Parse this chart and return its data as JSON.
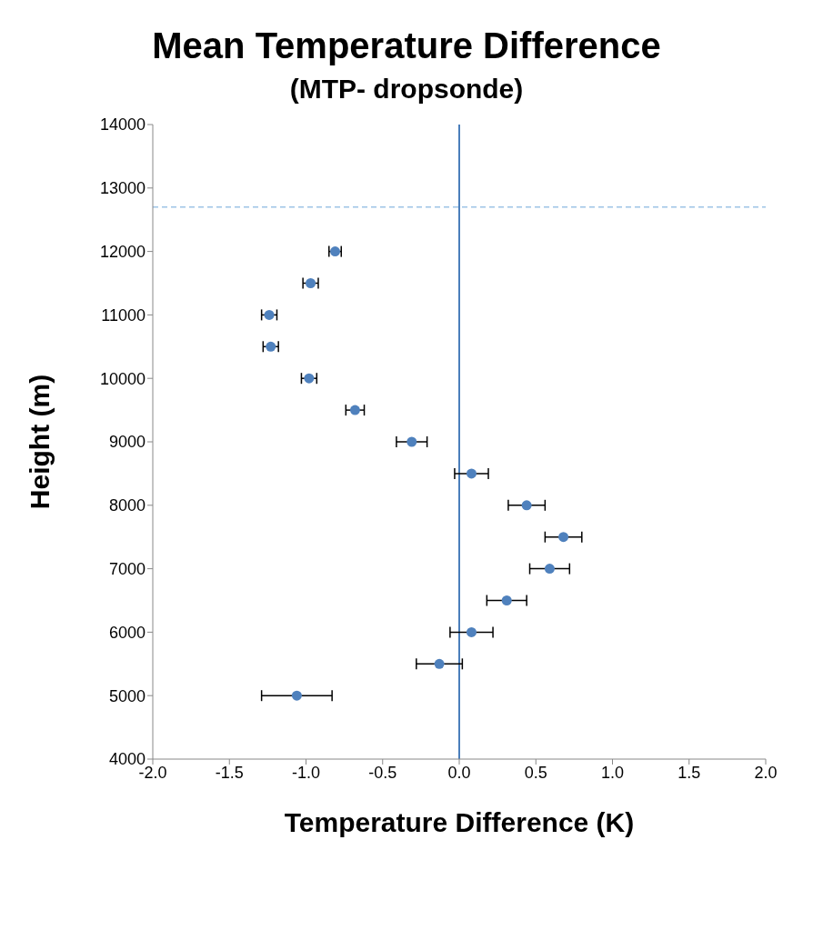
{
  "chart_data": {
    "type": "scatter",
    "title": "Mean Temperature Difference",
    "subtitle": "(MTP- dropsonde)",
    "xlabel": "Temperature Difference (K)",
    "ylabel": "Height (m)",
    "x": [
      -0.81,
      -0.97,
      -1.24,
      -1.23,
      -0.98,
      -0.68,
      -0.31,
      0.08,
      0.44,
      0.68,
      0.59,
      0.31,
      0.08,
      -0.13,
      -1.06
    ],
    "values": [
      12000,
      11500,
      11000,
      10500,
      10000,
      9500,
      9000,
      8500,
      8000,
      7500,
      7000,
      6500,
      6000,
      5500,
      5000
    ],
    "xerrors": [
      0.04,
      0.05,
      0.05,
      0.05,
      0.05,
      0.06,
      0.1,
      0.11,
      0.12,
      0.12,
      0.13,
      0.13,
      0.14,
      0.15,
      0.23
    ],
    "color": "#4f81bd",
    "marker": "circle",
    "xlim": [
      -2.0,
      2.0
    ],
    "xticks": [
      {
        "value": -2,
        "label": "-2.0"
      },
      {
        "value": -1.5,
        "label": "-1.5"
      },
      {
        "value": -1,
        "label": "-1.0"
      },
      {
        "value": -0.5,
        "label": "-0.5"
      },
      {
        "value": 0,
        "label": "0.0"
      },
      {
        "value": 0.5,
        "label": "0.5"
      },
      {
        "value": 1,
        "label": "1.0"
      },
      {
        "value": 1.5,
        "label": "1.5"
      },
      {
        "value": 2,
        "label": "2.0"
      }
    ],
    "ylim": [
      4000,
      14000
    ],
    "yticks": [
      4000,
      5000,
      6000,
      7000,
      8000,
      9000,
      10000,
      11000,
      12000,
      13000,
      14000
    ],
    "ref_lines": [
      {
        "axis": "x",
        "value": 0,
        "color": "#4a7ebb",
        "line_style": "solid"
      },
      {
        "axis": "y",
        "value": 12700,
        "color": "#9dc3e6",
        "line_style": "dashed"
      }
    ],
    "grid": false,
    "legend": false
  }
}
